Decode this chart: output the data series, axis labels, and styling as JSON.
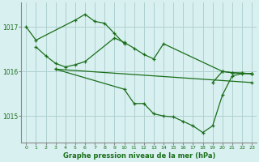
{
  "background_color": "#d8f0f0",
  "grid_color": "#b0d0d0",
  "line_color": "#1a6e1a",
  "title": "Graphe pression niveau de la mer (hPa)",
  "yticks": [
    1015,
    1016,
    1017
  ],
  "xlim": [
    -0.5,
    23.5
  ],
  "ylim": [
    1014.4,
    1017.55
  ],
  "series": [
    {
      "x": [
        0,
        1,
        5,
        6,
        7,
        8,
        9,
        10
      ],
      "y": [
        1017.0,
        1016.7,
        1017.15,
        1017.28,
        1017.12,
        1017.08,
        1016.85,
        1016.62
      ]
    },
    {
      "x": [
        1,
        2,
        3,
        4,
        5,
        6,
        9,
        10,
        11,
        12,
        13,
        14,
        20,
        21,
        22,
        23
      ],
      "y": [
        1016.55,
        1016.35,
        1016.18,
        1016.1,
        1016.15,
        1016.22,
        1016.75,
        1016.65,
        1016.52,
        1016.38,
        1016.28,
        1016.62,
        1016.0,
        1015.97,
        1015.96,
        1015.95
      ]
    },
    {
      "x": [
        3,
        23
      ],
      "y": [
        1016.05,
        1015.75
      ]
    },
    {
      "x": [
        19,
        20,
        21,
        22,
        23
      ],
      "y": [
        1015.75,
        1016.0,
        1015.97,
        1015.96,
        1015.95
      ]
    },
    {
      "x": [
        3,
        10,
        11,
        12,
        13,
        14,
        15,
        16,
        17,
        18,
        19,
        20,
        21,
        22,
        23
      ],
      "y": [
        1016.05,
        1015.6,
        1015.28,
        1015.28,
        1015.05,
        1015.0,
        1014.98,
        1014.88,
        1014.78,
        1014.63,
        1014.78,
        1015.47,
        1015.9,
        1015.95,
        1015.95
      ]
    }
  ]
}
